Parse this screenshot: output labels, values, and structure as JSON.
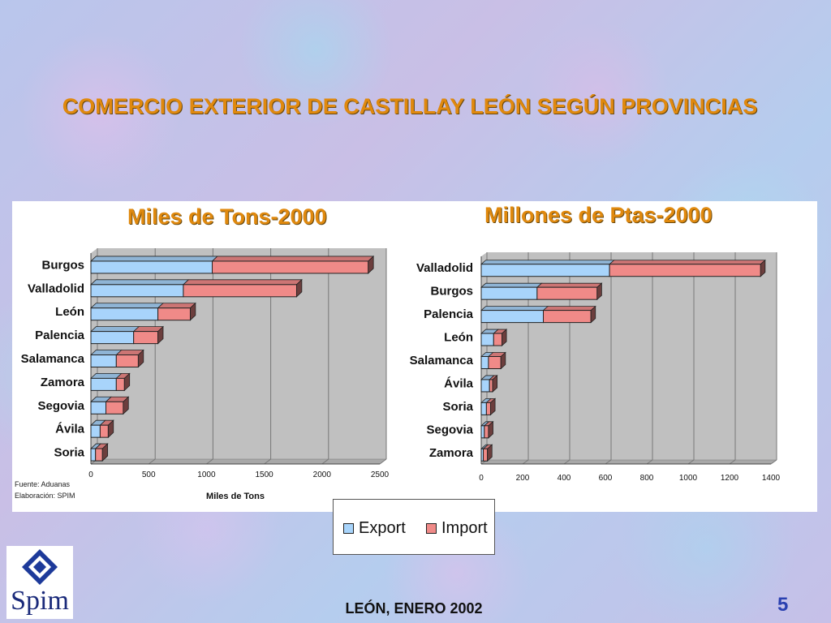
{
  "slide": {
    "title": "COMERCIO EXTERIOR DE CASTILLAY LEÓN SEGÚN PROVINCIAS",
    "footer": "LEÓN, ENERO 2002",
    "page_number": "5",
    "logo_text": "Spim",
    "source_line1": "Fuente: Aduanas",
    "source_line2": "Elaboración: SPIM"
  },
  "legend": {
    "export_label": "Export",
    "import_label": "Import"
  },
  "colors": {
    "export": "#a8d4fb",
    "import": "#f08a88",
    "title": "#e0890e"
  },
  "chart_data": [
    {
      "type": "bar",
      "orientation": "horizontal",
      "stacked": true,
      "title": "Miles de Tons-2000",
      "xlabel": "Miles de Tons",
      "xlim": [
        0,
        2500
      ],
      "xticks": [
        0,
        500,
        1000,
        1500,
        2000,
        2500
      ],
      "grid": true,
      "categories": [
        "Burgos",
        "Valladolid",
        "León",
        "Palencia",
        "Salamanca",
        "Zamora",
        "Segovia",
        "Ávila",
        "Soria"
      ],
      "series": [
        {
          "name": "Export",
          "values": [
            1050,
            800,
            580,
            370,
            220,
            220,
            130,
            80,
            40
          ]
        },
        {
          "name": "Import",
          "values": [
            1350,
            980,
            280,
            210,
            190,
            70,
            150,
            70,
            60
          ]
        }
      ]
    },
    {
      "type": "bar",
      "orientation": "horizontal",
      "stacked": true,
      "title": "Millones de Ptas-2000",
      "xlabel": "",
      "xlim": [
        0,
        1400
      ],
      "xticks": [
        0,
        200,
        400,
        600,
        800,
        1000,
        1200,
        1400
      ],
      "grid": true,
      "categories": [
        "Valladolid",
        "Burgos",
        "Palencia",
        "León",
        "Salamanca",
        "Ávila",
        "Soria",
        "Segovia",
        "Zamora"
      ],
      "series": [
        {
          "name": "Export",
          "values": [
            620,
            270,
            300,
            60,
            35,
            40,
            25,
            15,
            10
          ]
        },
        {
          "name": "Import",
          "values": [
            730,
            290,
            230,
            40,
            60,
            15,
            20,
            20,
            20
          ]
        }
      ]
    }
  ]
}
